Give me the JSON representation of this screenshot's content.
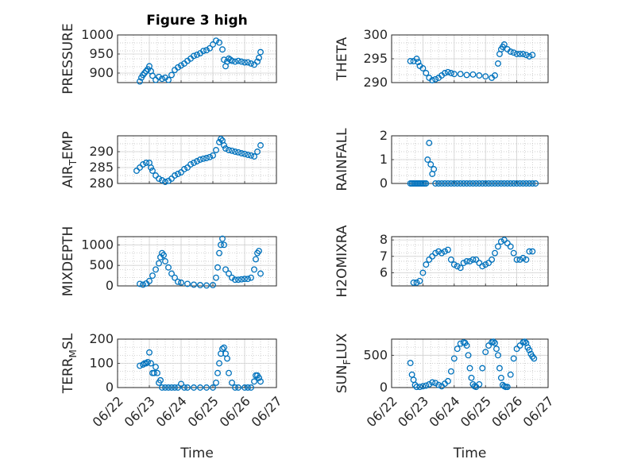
{
  "figure": {
    "title": "Figure 3 high",
    "background": "#ffffff"
  },
  "colors": {
    "marker": "#0072BD",
    "axis": "#262626",
    "grid": "#d0d0d0",
    "minor_grid": "#bdbdbd"
  },
  "chart_data": [
    {
      "type": "scatter",
      "title": "Figure 3 high",
      "ylabel": "PRESSURE",
      "ylim": [
        875,
        1000
      ],
      "yticks": [
        "900",
        "950",
        "1000"
      ],
      "ytick_values": [
        900,
        950,
        1000
      ],
      "xlim": [
        0,
        5
      ],
      "xticks": [],
      "xlabel": "",
      "grid": true,
      "marker": "open-circle",
      "series": [
        {
          "x": [
            0.7,
            0.75,
            0.8,
            0.85,
            0.9,
            0.95,
            1.0,
            1.05,
            1.1,
            1.2,
            1.3,
            1.4,
            1.5,
            1.6,
            1.7,
            1.8,
            1.9,
            2.0,
            2.1,
            2.2,
            2.3,
            2.4,
            2.5,
            2.6,
            2.7,
            2.8,
            2.9,
            3.0,
            3.1,
            3.2,
            3.3,
            3.35,
            3.4,
            3.45,
            3.5,
            3.55,
            3.6,
            3.7,
            3.8,
            3.9,
            4.0,
            4.1,
            4.2,
            4.3,
            4.4,
            4.45,
            4.5
          ],
          "y": [
            878,
            888,
            895,
            900,
            905,
            910,
            918,
            905,
            893,
            882,
            890,
            885,
            888,
            882,
            895,
            908,
            915,
            920,
            925,
            932,
            938,
            945,
            948,
            952,
            958,
            960,
            965,
            975,
            985,
            980,
            962,
            935,
            918,
            930,
            938,
            935,
            932,
            930,
            932,
            930,
            928,
            928,
            925,
            922,
            930,
            940,
            955
          ]
        }
      ]
    },
    {
      "type": "scatter",
      "ylabel": "THETA",
      "ylim": [
        290,
        300
      ],
      "yticks": [
        "290",
        "295",
        "300"
      ],
      "ytick_values": [
        290,
        295,
        300
      ],
      "xlim": [
        0,
        5
      ],
      "xticks": [],
      "xlabel": "",
      "grid": true,
      "marker": "open-circle",
      "series": [
        {
          "x": [
            0.6,
            0.7,
            0.8,
            0.85,
            0.9,
            1.0,
            1.1,
            1.2,
            1.3,
            1.4,
            1.5,
            1.6,
            1.7,
            1.8,
            1.9,
            2.0,
            2.2,
            2.4,
            2.6,
            2.8,
            3.0,
            3.2,
            3.3,
            3.4,
            3.45,
            3.5,
            3.55,
            3.6,
            3.7,
            3.8,
            3.9,
            4.0,
            4.1,
            4.2,
            4.3,
            4.4,
            4.5
          ],
          "y": [
            294.5,
            294.5,
            295.0,
            294.3,
            293.5,
            293.0,
            292.0,
            291.0,
            290.5,
            290.7,
            291.0,
            291.5,
            292.0,
            292.2,
            292.0,
            291.8,
            291.8,
            291.6,
            291.7,
            291.5,
            291.3,
            291.0,
            291.5,
            294.0,
            296.0,
            297.0,
            297.5,
            298.0,
            297.0,
            296.5,
            296.3,
            296.0,
            296.0,
            296.0,
            295.8,
            295.5,
            295.8
          ]
        }
      ]
    },
    {
      "type": "scatter",
      "ylabel": "AIR",
      "ylabel_sub": "T",
      "ylabel_rest": "EMP",
      "ylim": [
        280,
        295
      ],
      "yticks": [
        "280",
        "285",
        "290"
      ],
      "ytick_values": [
        280,
        285,
        290
      ],
      "xlim": [
        0,
        5
      ],
      "xticks": [],
      "xlabel": "",
      "grid": true,
      "marker": "open-circle",
      "series": [
        {
          "x": [
            0.6,
            0.7,
            0.8,
            0.9,
            1.0,
            1.05,
            1.1,
            1.2,
            1.3,
            1.4,
            1.5,
            1.6,
            1.7,
            1.8,
            1.9,
            2.0,
            2.1,
            2.2,
            2.3,
            2.4,
            2.5,
            2.6,
            2.7,
            2.8,
            2.9,
            3.0,
            3.1,
            3.2,
            3.25,
            3.3,
            3.35,
            3.4,
            3.5,
            3.6,
            3.7,
            3.8,
            3.9,
            4.0,
            4.1,
            4.2,
            4.3,
            4.4,
            4.5
          ],
          "y": [
            284.0,
            285.0,
            286.0,
            286.5,
            286.5,
            285.0,
            284.0,
            282.5,
            281.5,
            281.0,
            280.5,
            280.8,
            281.5,
            282.5,
            283.0,
            283.5,
            284.5,
            285.0,
            286.0,
            286.5,
            287.0,
            287.5,
            287.8,
            288.0,
            288.3,
            288.8,
            290.5,
            293.0,
            294.0,
            293.5,
            292.0,
            291.0,
            290.5,
            290.3,
            290.0,
            289.8,
            289.5,
            289.3,
            289.0,
            288.8,
            288.5,
            290.0,
            292.0
          ]
        }
      ]
    },
    {
      "type": "scatter",
      "ylabel": "RAINFALL",
      "ylim": [
        0,
        2
      ],
      "yticks": [
        "0",
        "1",
        "2"
      ],
      "ytick_values": [
        0,
        1,
        2
      ],
      "xlim": [
        0,
        5
      ],
      "xticks": [],
      "xlabel": "",
      "grid": true,
      "marker": "open-circle",
      "series": [
        {
          "x": [
            0.6,
            0.65,
            0.7,
            0.75,
            0.8,
            0.85,
            0.9,
            0.95,
            1.0,
            1.05,
            1.1,
            1.15,
            1.2,
            1.25,
            1.3,
            1.35,
            1.4,
            1.5,
            1.6,
            1.7,
            1.8,
            1.9,
            2.0,
            2.1,
            2.2,
            2.3,
            2.4,
            2.5,
            2.6,
            2.7,
            2.8,
            2.9,
            3.0,
            3.1,
            3.2,
            3.3,
            3.4,
            3.5,
            3.6,
            3.7,
            3.8,
            3.9,
            4.0,
            4.1,
            4.2,
            4.3,
            4.4,
            4.5,
            4.6
          ],
          "y": [
            0,
            0,
            0,
            0,
            0,
            0,
            0,
            0,
            0,
            0,
            0,
            1.0,
            1.7,
            0.8,
            0.4,
            0.6,
            0,
            0,
            0,
            0,
            0,
            0,
            0,
            0,
            0,
            0,
            0,
            0,
            0,
            0,
            0,
            0,
            0,
            0,
            0,
            0,
            0,
            0,
            0,
            0,
            0,
            0,
            0,
            0,
            0,
            0,
            0,
            0,
            0
          ]
        }
      ]
    },
    {
      "type": "scatter",
      "ylabel": "MIXDEPTH",
      "ylim": [
        0,
        1200
      ],
      "yticks": [
        "0",
        "500",
        "1000"
      ],
      "ytick_values": [
        0,
        500,
        1000
      ],
      "xlim": [
        0,
        5
      ],
      "xticks": [],
      "xlabel": "",
      "grid": true,
      "marker": "open-circle",
      "series": [
        {
          "x": [
            0.7,
            0.8,
            0.9,
            1.0,
            1.1,
            1.2,
            1.3,
            1.35,
            1.4,
            1.45,
            1.5,
            1.6,
            1.7,
            1.8,
            1.9,
            2.0,
            2.2,
            2.4,
            2.6,
            2.8,
            3.0,
            3.1,
            3.15,
            3.2,
            3.25,
            3.3,
            3.35,
            3.4,
            3.5,
            3.6,
            3.7,
            3.8,
            3.9,
            4.0,
            4.1,
            4.2,
            4.3,
            4.35,
            4.4,
            4.45,
            4.5
          ],
          "y": [
            50,
            30,
            60,
            120,
            250,
            400,
            550,
            700,
            800,
            750,
            600,
            450,
            300,
            200,
            100,
            80,
            50,
            30,
            20,
            10,
            20,
            200,
            450,
            800,
            1000,
            1150,
            1000,
            400,
            300,
            200,
            150,
            150,
            160,
            170,
            170,
            200,
            400,
            650,
            800,
            850,
            300
          ]
        }
      ]
    },
    {
      "type": "scatter",
      "ylabel": "H2OMIXRA",
      "ylim": [
        5.2,
        8.2
      ],
      "yticks": [
        "6",
        "7",
        "8"
      ],
      "ytick_values": [
        6,
        7,
        8
      ],
      "xlim": [
        0,
        5
      ],
      "xticks": [],
      "xlabel": "",
      "grid": true,
      "marker": "open-circle",
      "series": [
        {
          "x": [
            0.7,
            0.8,
            0.9,
            1.0,
            1.1,
            1.2,
            1.3,
            1.4,
            1.5,
            1.6,
            1.7,
            1.8,
            1.9,
            2.0,
            2.1,
            2.2,
            2.3,
            2.4,
            2.5,
            2.6,
            2.7,
            2.8,
            2.9,
            3.0,
            3.1,
            3.2,
            3.3,
            3.4,
            3.5,
            3.6,
            3.7,
            3.8,
            3.9,
            4.0,
            4.1,
            4.2,
            4.3,
            4.4,
            4.5
          ],
          "y": [
            5.4,
            5.4,
            5.5,
            6.0,
            6.5,
            6.8,
            7.0,
            7.2,
            7.3,
            7.2,
            7.3,
            7.4,
            6.8,
            6.5,
            6.4,
            6.3,
            6.6,
            6.7,
            6.7,
            6.8,
            6.8,
            6.6,
            6.4,
            6.5,
            6.6,
            6.8,
            7.2,
            7.6,
            7.9,
            8.0,
            7.8,
            7.6,
            7.2,
            6.8,
            6.8,
            6.9,
            6.8,
            7.3,
            7.3
          ]
        }
      ]
    },
    {
      "type": "scatter",
      "ylabel": "TERR",
      "ylabel_sub": "M",
      "ylabel_rest": "SL",
      "ylim": [
        0,
        200
      ],
      "yticks": [
        "0",
        "100",
        "200"
      ],
      "ytick_values": [
        0,
        100,
        200
      ],
      "xlim": [
        0,
        5
      ],
      "xticks": [
        "06/22",
        "06/23",
        "06/24",
        "06/25",
        "06/26",
        "06/27"
      ],
      "xtick_values": [
        0,
        1,
        2,
        3,
        4,
        5
      ],
      "xlabel": "Time",
      "grid": true,
      "marker": "open-circle",
      "series": [
        {
          "x": [
            0.7,
            0.8,
            0.85,
            0.9,
            0.95,
            1.0,
            1.05,
            1.1,
            1.15,
            1.2,
            1.25,
            1.3,
            1.35,
            1.4,
            1.5,
            1.6,
            1.7,
            1.8,
            1.9,
            2.0,
            2.1,
            2.2,
            2.4,
            2.6,
            2.8,
            3.0,
            3.1,
            3.15,
            3.2,
            3.25,
            3.3,
            3.35,
            3.4,
            3.45,
            3.5,
            3.6,
            3.7,
            3.8,
            4.0,
            4.1,
            4.2,
            4.3,
            4.35,
            4.4,
            4.45,
            4.5
          ],
          "y": [
            90,
            95,
            100,
            100,
            105,
            145,
            100,
            60,
            60,
            85,
            60,
            20,
            30,
            0,
            0,
            0,
            0,
            0,
            0,
            15,
            0,
            0,
            0,
            0,
            0,
            0,
            20,
            60,
            100,
            140,
            160,
            165,
            140,
            120,
            60,
            20,
            0,
            0,
            0,
            0,
            0,
            25,
            50,
            50,
            40,
            25
          ]
        }
      ]
    },
    {
      "type": "scatter",
      "ylabel": "SUN",
      "ylabel_sub": "F",
      "ylabel_rest": "LUX",
      "ylim": [
        0,
        750
      ],
      "yticks": [
        "0",
        "500"
      ],
      "ytick_values": [
        0,
        500
      ],
      "xlim": [
        0,
        5
      ],
      "xticks": [
        "06/22",
        "06/23",
        "06/24",
        "06/25",
        "06/26",
        "06/27"
      ],
      "xtick_values": [
        0,
        1,
        2,
        3,
        4,
        5
      ],
      "xlabel": "Time",
      "grid": true,
      "marker": "open-circle",
      "series": [
        {
          "x": [
            0.6,
            0.65,
            0.7,
            0.75,
            0.8,
            0.9,
            1.0,
            1.1,
            1.2,
            1.3,
            1.4,
            1.5,
            1.6,
            1.7,
            1.8,
            1.9,
            2.0,
            2.1,
            2.2,
            2.3,
            2.35,
            2.4,
            2.45,
            2.5,
            2.55,
            2.6,
            2.65,
            2.7,
            2.8,
            2.9,
            3.0,
            3.1,
            3.2,
            3.25,
            3.3,
            3.35,
            3.4,
            3.45,
            3.5,
            3.55,
            3.6,
            3.65,
            3.7,
            3.8,
            3.9,
            4.0,
            4.1,
            4.2,
            4.25,
            4.3,
            4.35,
            4.4,
            4.45,
            4.5,
            4.55
          ],
          "y": [
            380,
            200,
            120,
            40,
            10,
            10,
            20,
            30,
            50,
            80,
            70,
            40,
            20,
            60,
            100,
            250,
            450,
            600,
            680,
            700,
            690,
            650,
            500,
            300,
            150,
            50,
            20,
            10,
            50,
            300,
            550,
            650,
            700,
            710,
            690,
            600,
            500,
            300,
            150,
            40,
            20,
            10,
            10,
            200,
            450,
            600,
            650,
            700,
            710,
            690,
            620,
            580,
            520,
            480,
            450
          ]
        }
      ]
    }
  ]
}
